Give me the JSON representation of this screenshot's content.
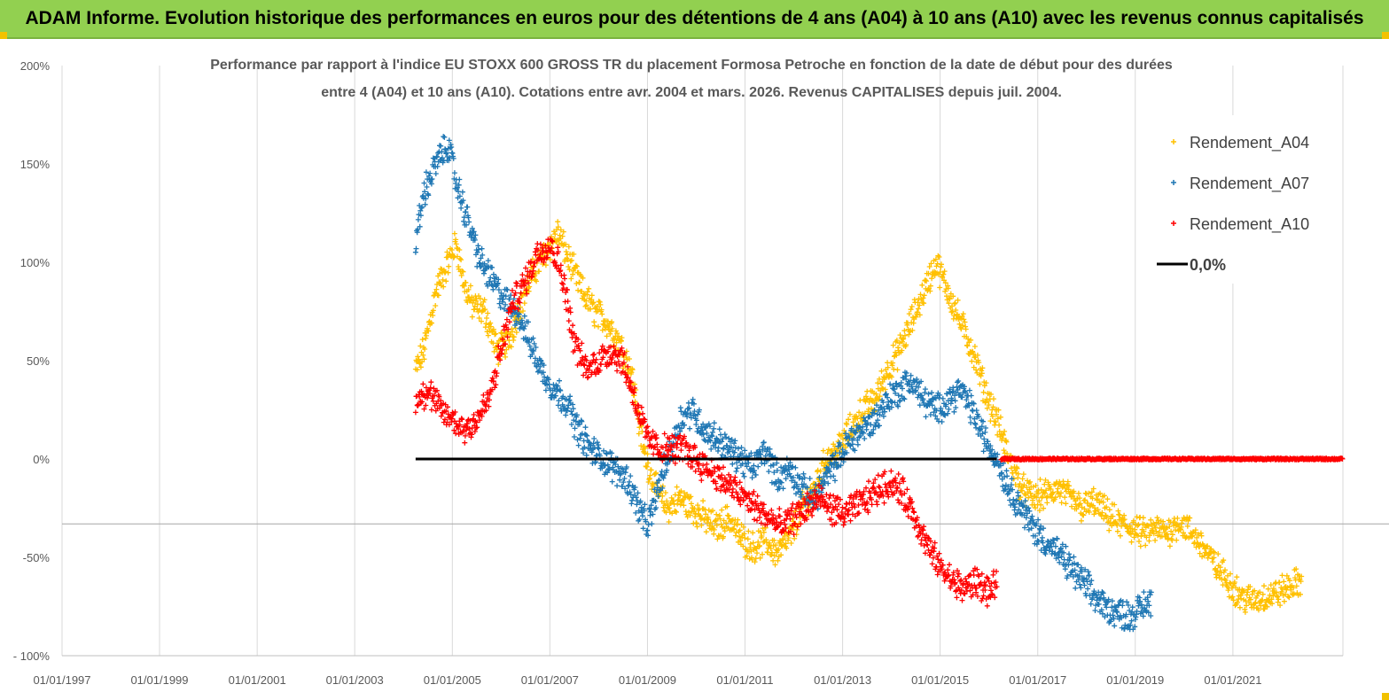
{
  "header": {
    "title": "ADAM Informe. Evolution historique des performances en euros pour des détentions de 4 ans (A04) à 10 ans (A10) avec les revenus connus capitalisés"
  },
  "chart_data": {
    "type": "scatter",
    "title_line1": "Performance par rapport à l'indice EU STOXX 600 GROSS TR  du placement Formosa Petroche  en fonction de la date de début pour des durées",
    "title_line2": "entre 4 (A04) et 10 ans (A10). Cotations entre avr. 2004 et mars. 2026. Revenus CAPITALISES depuis juil. 2004.",
    "xlabel": "",
    "ylabel": "",
    "x_range": [
      "1997-01-01",
      "2023-06-01"
    ],
    "ylim": [
      -100,
      200
    ],
    "y_ticks": [
      -100,
      -50,
      0,
      50,
      100,
      150,
      200
    ],
    "y_tick_labels": [
      "- 100%",
      "-50%",
      "0%",
      "50%",
      "100%",
      "150%",
      "200%"
    ],
    "x_ticks": [
      "1997-01-01",
      "1999-01-01",
      "2001-01-01",
      "2003-01-01",
      "2005-01-01",
      "2007-01-01",
      "2009-01-01",
      "2011-01-01",
      "2013-01-01",
      "2015-01-01",
      "2017-01-01",
      "2019-01-01",
      "2021-01-01"
    ],
    "x_tick_labels": [
      "01/01/1997",
      "01/01/1999",
      "01/01/2001",
      "01/01/2003",
      "01/01/2005",
      "01/01/2007",
      "01/01/2009",
      "01/01/2011",
      "01/01/2013",
      "01/01/2015",
      "01/01/2017",
      "01/01/2019",
      "01/01/2021"
    ],
    "grid": "vertical",
    "legend_position": "top-right",
    "series": [
      {
        "name": "Rendement_A04",
        "color": "#ffc000",
        "marker": "plus",
        "points": [
          [
            "2004-04-01",
            45
          ],
          [
            "2004-06-01",
            55
          ],
          [
            "2004-09-01",
            85
          ],
          [
            "2004-12-01",
            100
          ],
          [
            "2005-02-01",
            110
          ],
          [
            "2005-04-01",
            88
          ],
          [
            "2005-06-01",
            78
          ],
          [
            "2005-09-01",
            75
          ],
          [
            "2005-12-01",
            55
          ],
          [
            "2006-03-01",
            60
          ],
          [
            "2006-06-01",
            80
          ],
          [
            "2006-09-01",
            95
          ],
          [
            "2006-12-01",
            105
          ],
          [
            "2007-03-01",
            115
          ],
          [
            "2007-06-01",
            100
          ],
          [
            "2007-09-01",
            85
          ],
          [
            "2007-12-01",
            75
          ],
          [
            "2008-03-01",
            70
          ],
          [
            "2008-06-01",
            60
          ],
          [
            "2008-09-01",
            45
          ],
          [
            "2008-12-01",
            5
          ],
          [
            "2009-03-01",
            -15
          ],
          [
            "2009-06-01",
            -25
          ],
          [
            "2009-09-01",
            -20
          ],
          [
            "2009-12-01",
            -25
          ],
          [
            "2010-03-01",
            -30
          ],
          [
            "2010-06-01",
            -35
          ],
          [
            "2010-09-01",
            -30
          ],
          [
            "2010-12-01",
            -40
          ],
          [
            "2011-03-01",
            -45
          ],
          [
            "2011-06-01",
            -42
          ],
          [
            "2011-09-01",
            -48
          ],
          [
            "2011-12-01",
            -40
          ],
          [
            "2012-03-01",
            -25
          ],
          [
            "2012-06-01",
            -15
          ],
          [
            "2012-09-01",
            0
          ],
          [
            "2012-12-01",
            5
          ],
          [
            "2013-03-01",
            15
          ],
          [
            "2013-06-01",
            25
          ],
          [
            "2013-09-01",
            30
          ],
          [
            "2013-12-01",
            45
          ],
          [
            "2014-03-01",
            55
          ],
          [
            "2014-06-01",
            70
          ],
          [
            "2014-09-01",
            85
          ],
          [
            "2014-12-01",
            100
          ],
          [
            "2015-03-01",
            85
          ],
          [
            "2015-06-01",
            70
          ],
          [
            "2015-09-01",
            55
          ],
          [
            "2015-12-01",
            35
          ],
          [
            "2016-03-01",
            20
          ],
          [
            "2016-06-01",
            0
          ],
          [
            "2016-09-01",
            -15
          ],
          [
            "2016-12-01",
            -20
          ],
          [
            "2017-03-01",
            -18
          ],
          [
            "2017-06-01",
            -15
          ],
          [
            "2017-09-01",
            -20
          ],
          [
            "2017-12-01",
            -25
          ],
          [
            "2018-03-01",
            -22
          ],
          [
            "2018-06-01",
            -28
          ],
          [
            "2018-09-01",
            -33
          ],
          [
            "2018-12-01",
            -35
          ],
          [
            "2019-03-01",
            -38
          ],
          [
            "2019-06-01",
            -36
          ],
          [
            "2019-09-01",
            -37
          ],
          [
            "2019-12-01",
            -32
          ],
          [
            "2020-03-01",
            -38
          ],
          [
            "2020-06-01",
            -45
          ],
          [
            "2020-09-01",
            -55
          ],
          [
            "2020-12-01",
            -62
          ],
          [
            "2021-03-01",
            -70
          ],
          [
            "2021-06-01",
            -72
          ],
          [
            "2021-09-01",
            -70
          ],
          [
            "2021-12-01",
            -68
          ],
          [
            "2022-03-01",
            -65
          ],
          [
            "2022-06-01",
            -62
          ]
        ]
      },
      {
        "name": "Rendement_A07",
        "color": "#1f77b4",
        "marker": "plus",
        "points": [
          [
            "2004-04-01",
            110
          ],
          [
            "2004-06-01",
            135
          ],
          [
            "2004-09-01",
            150
          ],
          [
            "2004-12-01",
            160
          ],
          [
            "2005-02-01",
            140
          ],
          [
            "2005-05-01",
            120
          ],
          [
            "2005-08-01",
            100
          ],
          [
            "2005-11-01",
            90
          ],
          [
            "2006-02-01",
            80
          ],
          [
            "2006-05-01",
            75
          ],
          [
            "2006-08-01",
            60
          ],
          [
            "2006-11-01",
            45
          ],
          [
            "2007-02-01",
            35
          ],
          [
            "2007-05-01",
            30
          ],
          [
            "2007-08-01",
            15
          ],
          [
            "2007-11-01",
            5
          ],
          [
            "2008-02-01",
            0
          ],
          [
            "2008-05-01",
            -5
          ],
          [
            "2008-08-01",
            -10
          ],
          [
            "2008-11-01",
            -25
          ],
          [
            "2009-01-01",
            -35
          ],
          [
            "2009-03-01",
            -20
          ],
          [
            "2009-06-01",
            0
          ],
          [
            "2009-09-01",
            20
          ],
          [
            "2009-12-01",
            25
          ],
          [
            "2010-03-01",
            15
          ],
          [
            "2010-06-01",
            10
          ],
          [
            "2010-09-01",
            5
          ],
          [
            "2010-12-01",
            0
          ],
          [
            "2011-03-01",
            -5
          ],
          [
            "2011-06-01",
            5
          ],
          [
            "2011-09-01",
            -10
          ],
          [
            "2011-12-01",
            -5
          ],
          [
            "2012-03-01",
            -15
          ],
          [
            "2012-06-01",
            -20
          ],
          [
            "2012-09-01",
            -10
          ],
          [
            "2012-12-01",
            0
          ],
          [
            "2013-03-01",
            10
          ],
          [
            "2013-06-01",
            15
          ],
          [
            "2013-09-01",
            20
          ],
          [
            "2013-12-01",
            30
          ],
          [
            "2014-03-01",
            35
          ],
          [
            "2014-06-01",
            40
          ],
          [
            "2014-09-01",
            30
          ],
          [
            "2014-12-01",
            25
          ],
          [
            "2015-03-01",
            30
          ],
          [
            "2015-06-01",
            35
          ],
          [
            "2015-09-01",
            25
          ],
          [
            "2015-12-01",
            10
          ],
          [
            "2016-03-01",
            0
          ],
          [
            "2016-06-01",
            -15
          ],
          [
            "2016-09-01",
            -25
          ],
          [
            "2016-12-01",
            -35
          ],
          [
            "2017-03-01",
            -42
          ],
          [
            "2017-06-01",
            -48
          ],
          [
            "2017-09-01",
            -55
          ],
          [
            "2017-12-01",
            -62
          ],
          [
            "2018-03-01",
            -70
          ],
          [
            "2018-06-01",
            -76
          ],
          [
            "2018-09-01",
            -78
          ],
          [
            "2018-12-01",
            -80
          ],
          [
            "2019-03-01",
            -75
          ],
          [
            "2019-05-01",
            -72
          ]
        ]
      },
      {
        "name": "Rendement_A10",
        "color": "#ff0000",
        "marker": "plus",
        "points": [
          [
            "2004-04-01",
            30
          ],
          [
            "2004-07-01",
            35
          ],
          [
            "2004-10-01",
            25
          ],
          [
            "2005-01-01",
            20
          ],
          [
            "2005-04-01",
            15
          ],
          [
            "2005-07-01",
            20
          ],
          [
            "2005-10-01",
            30
          ],
          [
            "2006-01-01",
            55
          ],
          [
            "2006-04-01",
            80
          ],
          [
            "2006-07-01",
            90
          ],
          [
            "2006-10-01",
            105
          ],
          [
            "2007-01-01",
            110
          ],
          [
            "2007-04-01",
            95
          ],
          [
            "2007-07-01",
            60
          ],
          [
            "2007-10-01",
            45
          ],
          [
            "2008-01-01",
            50
          ],
          [
            "2008-04-01",
            55
          ],
          [
            "2008-07-01",
            50
          ],
          [
            "2008-10-01",
            30
          ],
          [
            "2009-01-01",
            10
          ],
          [
            "2009-04-01",
            5
          ],
          [
            "2009-07-01",
            5
          ],
          [
            "2009-10-01",
            5
          ],
          [
            "2010-01-01",
            0
          ],
          [
            "2010-04-01",
            -5
          ],
          [
            "2010-07-01",
            -10
          ],
          [
            "2010-10-01",
            -15
          ],
          [
            "2011-01-01",
            -20
          ],
          [
            "2011-04-01",
            -25
          ],
          [
            "2011-07-01",
            -30
          ],
          [
            "2011-10-01",
            -35
          ],
          [
            "2012-01-01",
            -30
          ],
          [
            "2012-04-01",
            -25
          ],
          [
            "2012-07-01",
            -20
          ],
          [
            "2012-10-01",
            -25
          ],
          [
            "2013-01-01",
            -28
          ],
          [
            "2013-04-01",
            -25
          ],
          [
            "2013-07-01",
            -20
          ],
          [
            "2013-10-01",
            -15
          ],
          [
            "2014-01-01",
            -12
          ],
          [
            "2014-04-01",
            -18
          ],
          [
            "2014-07-01",
            -30
          ],
          [
            "2014-10-01",
            -45
          ],
          [
            "2015-01-01",
            -55
          ],
          [
            "2015-04-01",
            -62
          ],
          [
            "2015-07-01",
            -66
          ],
          [
            "2015-10-01",
            -62
          ],
          [
            "2016-01-01",
            -68
          ],
          [
            "2016-03-01",
            -64
          ]
        ],
        "flat_segment": {
          "from": "2016-04-01",
          "to": "2023-06-01",
          "value": 0
        }
      },
      {
        "name": "0,0%",
        "color": "#000000",
        "marker": "line",
        "points": [
          [
            "2004-04-01",
            0
          ],
          [
            "2016-03-01",
            0
          ]
        ]
      }
    ]
  }
}
